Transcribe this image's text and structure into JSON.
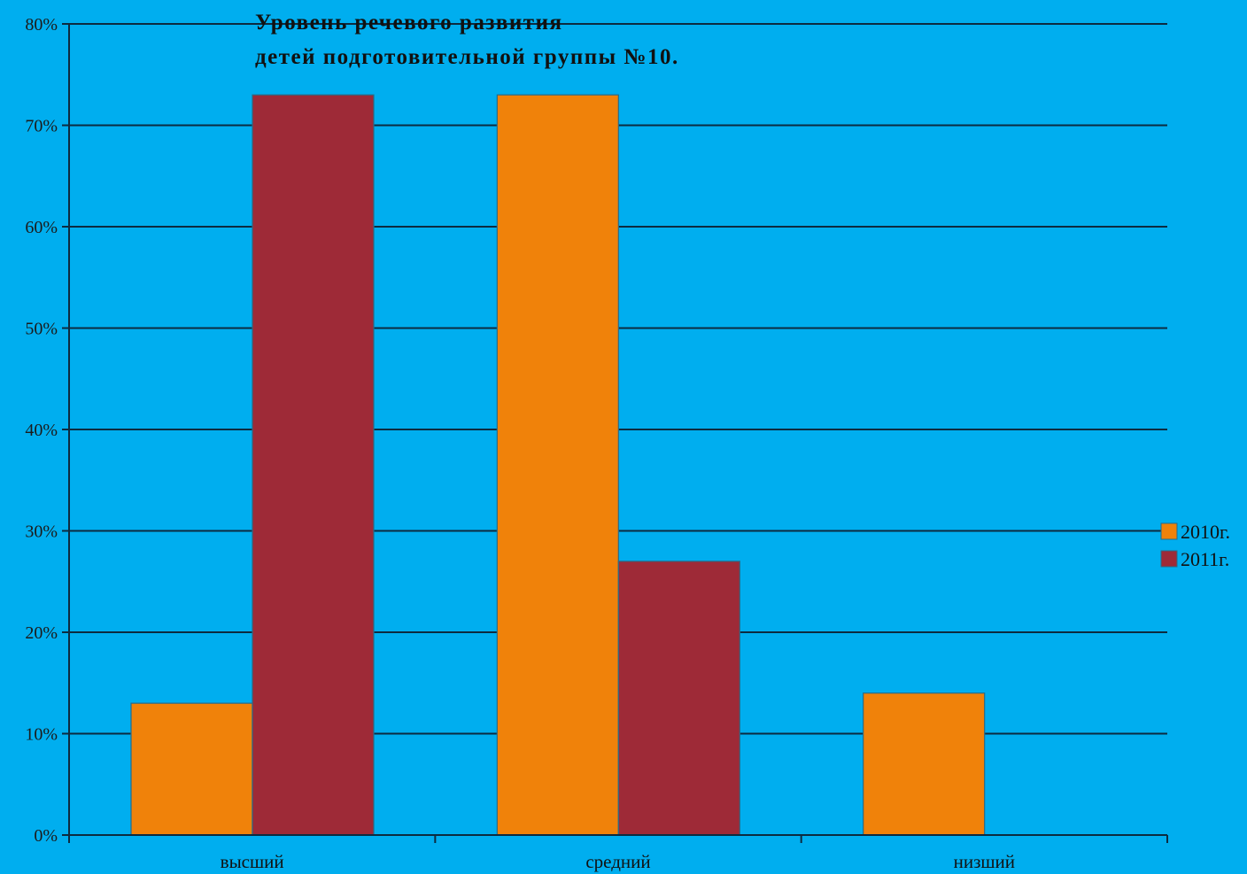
{
  "chart_data": {
    "type": "bar",
    "title": [
      "Уровень речевого развития",
      "детей подготовительной группы №10."
    ],
    "categories": [
      "высший",
      "средний",
      "низший"
    ],
    "series": [
      {
        "name": "2010г.",
        "values": [
          13,
          73,
          14
        ],
        "color": "#f0820a"
      },
      {
        "name": "2011г.",
        "values": [
          73,
          27,
          0
        ],
        "color": "#9e2a37"
      }
    ],
    "ylim": [
      0,
      80
    ],
    "yticks": [
      "0%",
      "10%",
      "20%",
      "30%",
      "40%",
      "50%",
      "60%",
      "70%",
      "80%"
    ],
    "grid": true,
    "legend_position": "right"
  }
}
